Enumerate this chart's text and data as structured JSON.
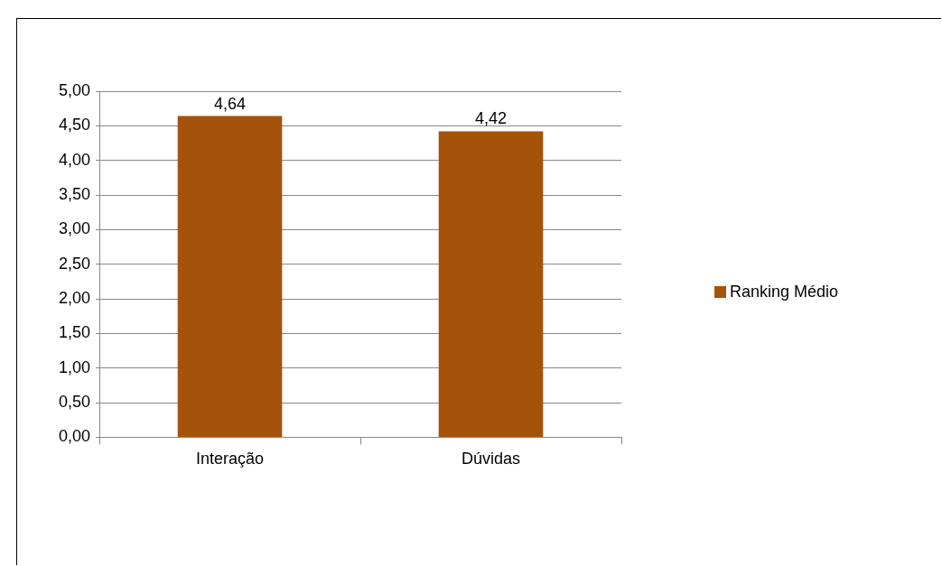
{
  "chart_data": {
    "type": "bar",
    "categories": [
      "Interação",
      "Dúvidas"
    ],
    "series": [
      {
        "name": "Ranking Médio",
        "color": "#a5520a",
        "values": [
          4.64,
          4.42
        ],
        "value_labels": [
          "4,64",
          "4,42"
        ]
      }
    ],
    "ylim": [
      0,
      5
    ],
    "yticks": [
      {
        "value": 0,
        "label": "0,00"
      },
      {
        "value": 0.5,
        "label": "0,50"
      },
      {
        "value": 1,
        "label": "1,00"
      },
      {
        "value": 1.5,
        "label": "1,50"
      },
      {
        "value": 2,
        "label": "2,00"
      },
      {
        "value": 2.5,
        "label": "2,50"
      },
      {
        "value": 3,
        "label": "3,00"
      },
      {
        "value": 3.5,
        "label": "3,50"
      },
      {
        "value": 4,
        "label": "4,00"
      },
      {
        "value": 4.5,
        "label": "4,50"
      },
      {
        "value": 5,
        "label": "5,00"
      }
    ],
    "grid": "y",
    "legend": "right"
  }
}
